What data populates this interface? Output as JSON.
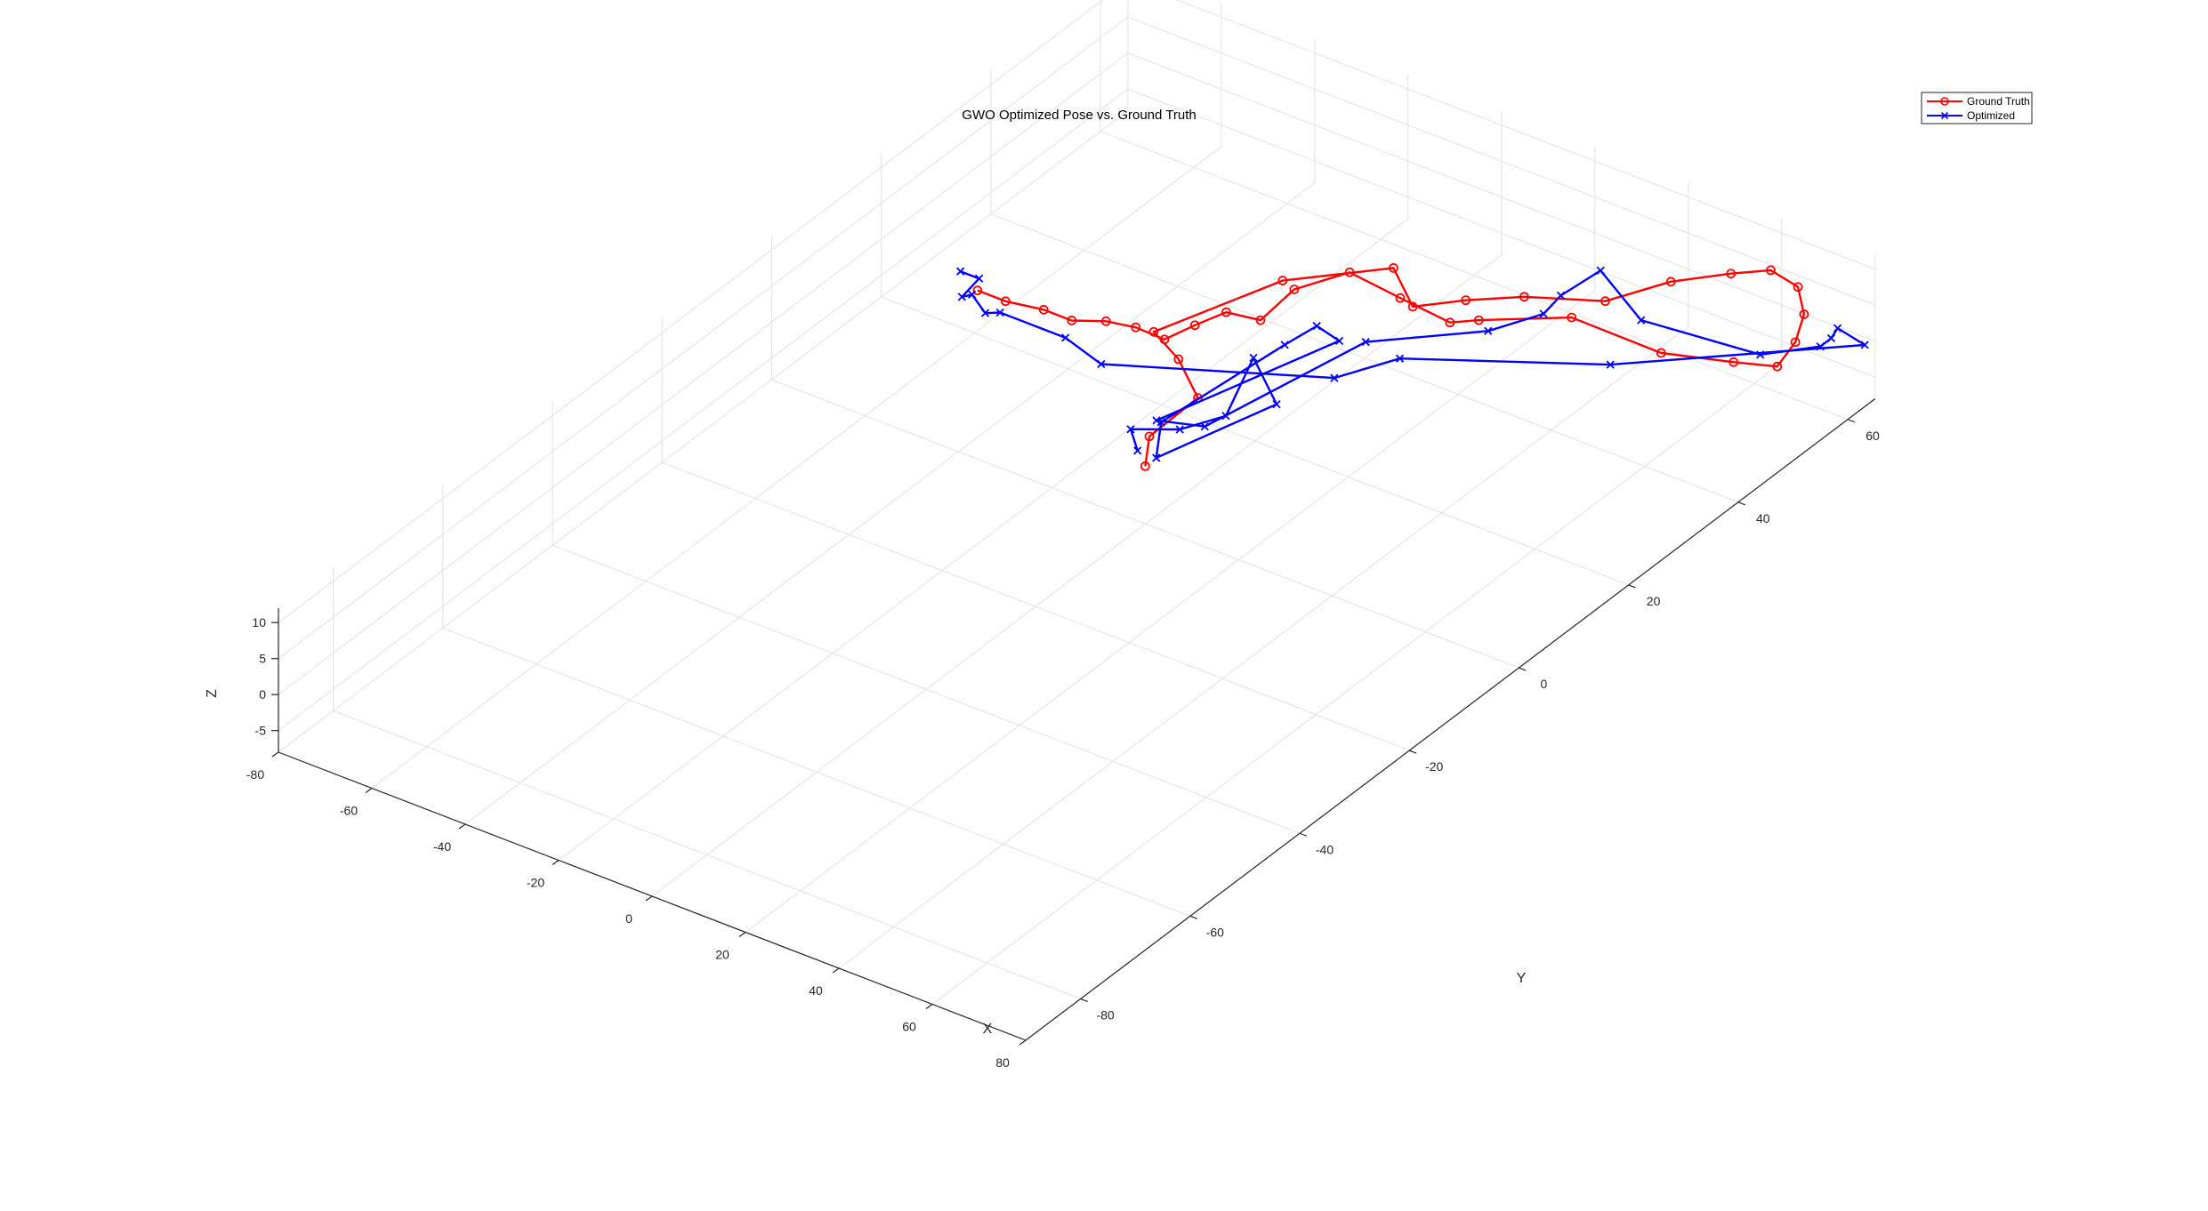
{
  "chart_data": {
    "type": "line",
    "title": "GWO Optimized Pose vs. Ground Truth",
    "xlabel": "X",
    "ylabel": "Y",
    "zlabel": "Z",
    "xlim": [
      -80,
      80
    ],
    "ylim": [
      -90,
      65
    ],
    "zlim": [
      -8,
      12
    ],
    "x_ticks": [
      "-80",
      "-60",
      "-40",
      "-20",
      "0",
      "20",
      "40",
      "60",
      "80"
    ],
    "y_ticks": [
      "-80",
      "-60",
      "-40",
      "-20",
      "0",
      "20",
      "40",
      "60"
    ],
    "z_ticks": [
      "10",
      "5",
      "0",
      "-5"
    ],
    "grid": true,
    "view": "3d",
    "legend_position": "top-right",
    "series": [
      {
        "name": "Ground Truth",
        "color": "#ff0000",
        "marker": "circle",
        "points": [
          [
            0,
            0,
            0
          ],
          [
            -5,
            5,
            0
          ],
          [
            -4,
            13,
            1
          ],
          [
            -14,
            18,
            1
          ],
          [
            -24,
            22,
            0
          ],
          [
            -14,
            37,
            1
          ],
          [
            -2,
            47,
            0
          ],
          [
            8,
            42,
            0
          ],
          [
            17,
            44,
            2
          ],
          [
            26,
            47,
            3
          ],
          [
            41,
            49,
            5
          ],
          [
            48,
            55,
            6
          ],
          [
            55,
            60,
            6
          ],
          [
            60,
            63,
            6
          ],
          [
            67,
            62,
            6
          ],
          [
            73,
            58,
            6
          ],
          [
            77,
            53,
            6
          ],
          [
            79,
            48,
            6
          ],
          [
            72,
            46,
            6
          ],
          [
            60,
            43,
            6
          ],
          [
            42,
            42,
            7
          ],
          [
            28,
            37,
            6
          ],
          [
            23,
            36,
            5
          ],
          [
            10,
            38,
            4
          ],
          [
            -2,
            39,
            4
          ],
          [
            -8,
            34,
            3
          ],
          [
            -7,
            27,
            3
          ],
          [
            -12,
            25,
            4
          ],
          [
            -14,
            21,
            4
          ],
          [
            -17,
            18,
            3
          ],
          [
            -22,
            17,
            4
          ],
          [
            -26,
            15,
            5
          ],
          [
            -31,
            13,
            5
          ],
          [
            -37,
            13,
            5
          ],
          [
            -44,
            12,
            5
          ],
          [
            -50,
            12,
            5
          ]
        ]
      },
      {
        "name": "Optimized",
        "color": "#0000ff",
        "marker": "x",
        "points": [
          [
            -4,
            2,
            0
          ],
          [
            -9,
            5,
            0
          ],
          [
            -2,
            8,
            0
          ],
          [
            2,
            13,
            0
          ],
          [
            -5,
            24,
            0
          ],
          [
            7,
            18,
            0
          ],
          [
            0,
            2,
            0
          ],
          [
            -6,
            8,
            0
          ],
          [
            -3,
            28,
            0
          ],
          [
            -2,
            33,
            0
          ],
          [
            4,
            32,
            0
          ],
          [
            -7,
            8,
            0
          ],
          [
            1,
            10,
            0
          ],
          [
            12,
            30,
            3
          ],
          [
            30,
            37,
            5
          ],
          [
            36,
            42,
            6
          ],
          [
            35,
            46,
            6
          ],
          [
            40,
            49,
            9
          ],
          [
            51,
            47,
            6
          ],
          [
            73,
            50,
            5
          ],
          [
            80,
            55,
            5
          ],
          [
            80,
            57,
            5
          ],
          [
            79,
            59,
            5
          ],
          [
            86,
            58,
            5
          ],
          [
            55,
            38,
            6
          ],
          [
            24,
            26,
            6
          ],
          [
            17,
            20,
            5
          ],
          [
            -20,
            9,
            4
          ],
          [
            -30,
            11,
            4
          ],
          [
            -44,
            11,
            4
          ],
          [
            -46,
            10,
            4
          ],
          [
            -50,
            11,
            5
          ],
          [
            -51,
            10,
            5
          ],
          [
            -52,
            14,
            5
          ],
          [
            -56,
            14,
            5
          ]
        ]
      }
    ]
  }
}
